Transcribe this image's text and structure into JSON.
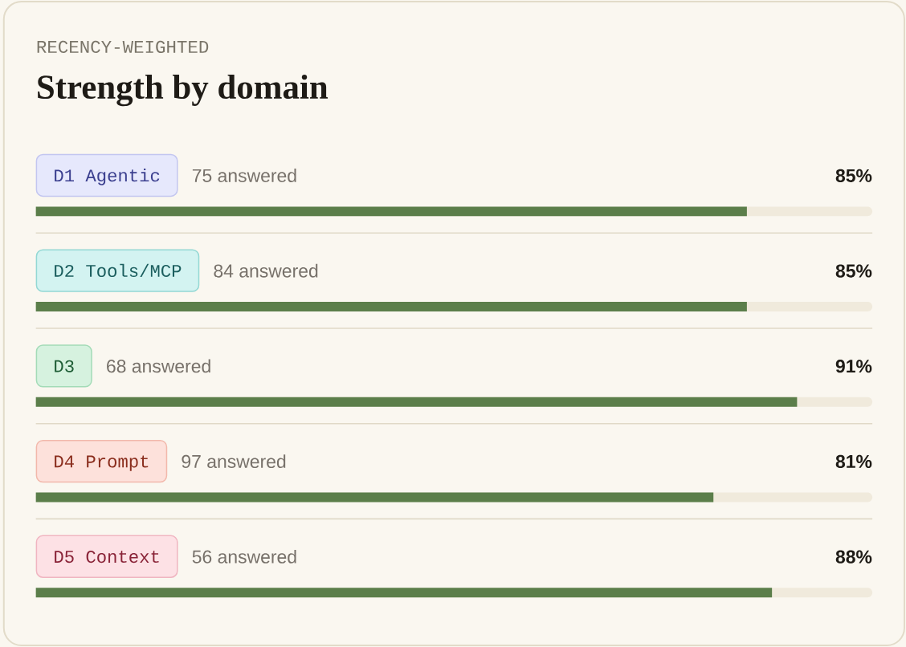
{
  "chart_data": {
    "type": "bar",
    "orientation": "horizontal",
    "subtitle": "RECENCY-WEIGHTED",
    "title": "Strength by domain",
    "categories": [
      "D1 Agentic",
      "D2 Tools/MCP",
      "D3",
      "D4 Prompt",
      "D5 Context"
    ],
    "values": [
      85,
      85,
      91,
      81,
      88
    ],
    "value_labels": [
      "85%",
      "85%",
      "91%",
      "81%",
      "88%"
    ],
    "color": "#5b7e4a",
    "xlim": [
      0,
      100
    ],
    "annotations": [
      "75 answered",
      "84 answered",
      "68 answered",
      "97 answered",
      "56 answered"
    ]
  }
}
